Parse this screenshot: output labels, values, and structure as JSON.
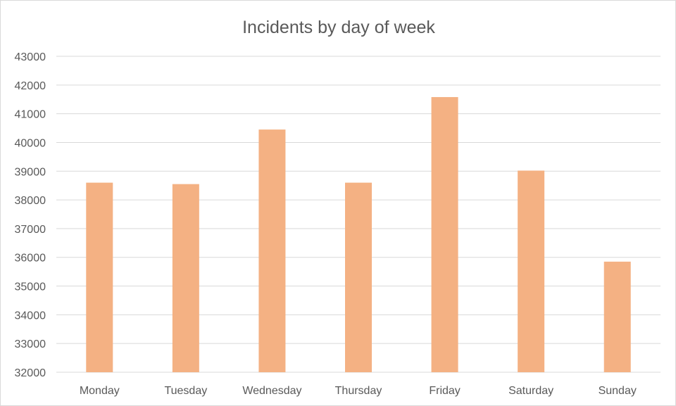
{
  "chart_data": {
    "type": "bar",
    "title": "Incidents by day of week",
    "xlabel": "",
    "ylabel": "",
    "categories": [
      "Monday",
      "Tuesday",
      "Wednesday",
      "Thursday",
      "Friday",
      "Saturday",
      "Sunday"
    ],
    "values": [
      38600,
      38550,
      40450,
      38600,
      41580,
      39020,
      35850
    ],
    "ylim": [
      32000,
      43000
    ],
    "yticks": [
      "32000",
      "33000",
      "34000",
      "35000",
      "36000",
      "37000",
      "38000",
      "39000",
      "40000",
      "41000",
      "42000",
      "43000"
    ],
    "grid": true,
    "legend": "none",
    "colors": {
      "bar": "#f4b183",
      "gridline": "#d9d9d9",
      "text": "#595959"
    }
  }
}
